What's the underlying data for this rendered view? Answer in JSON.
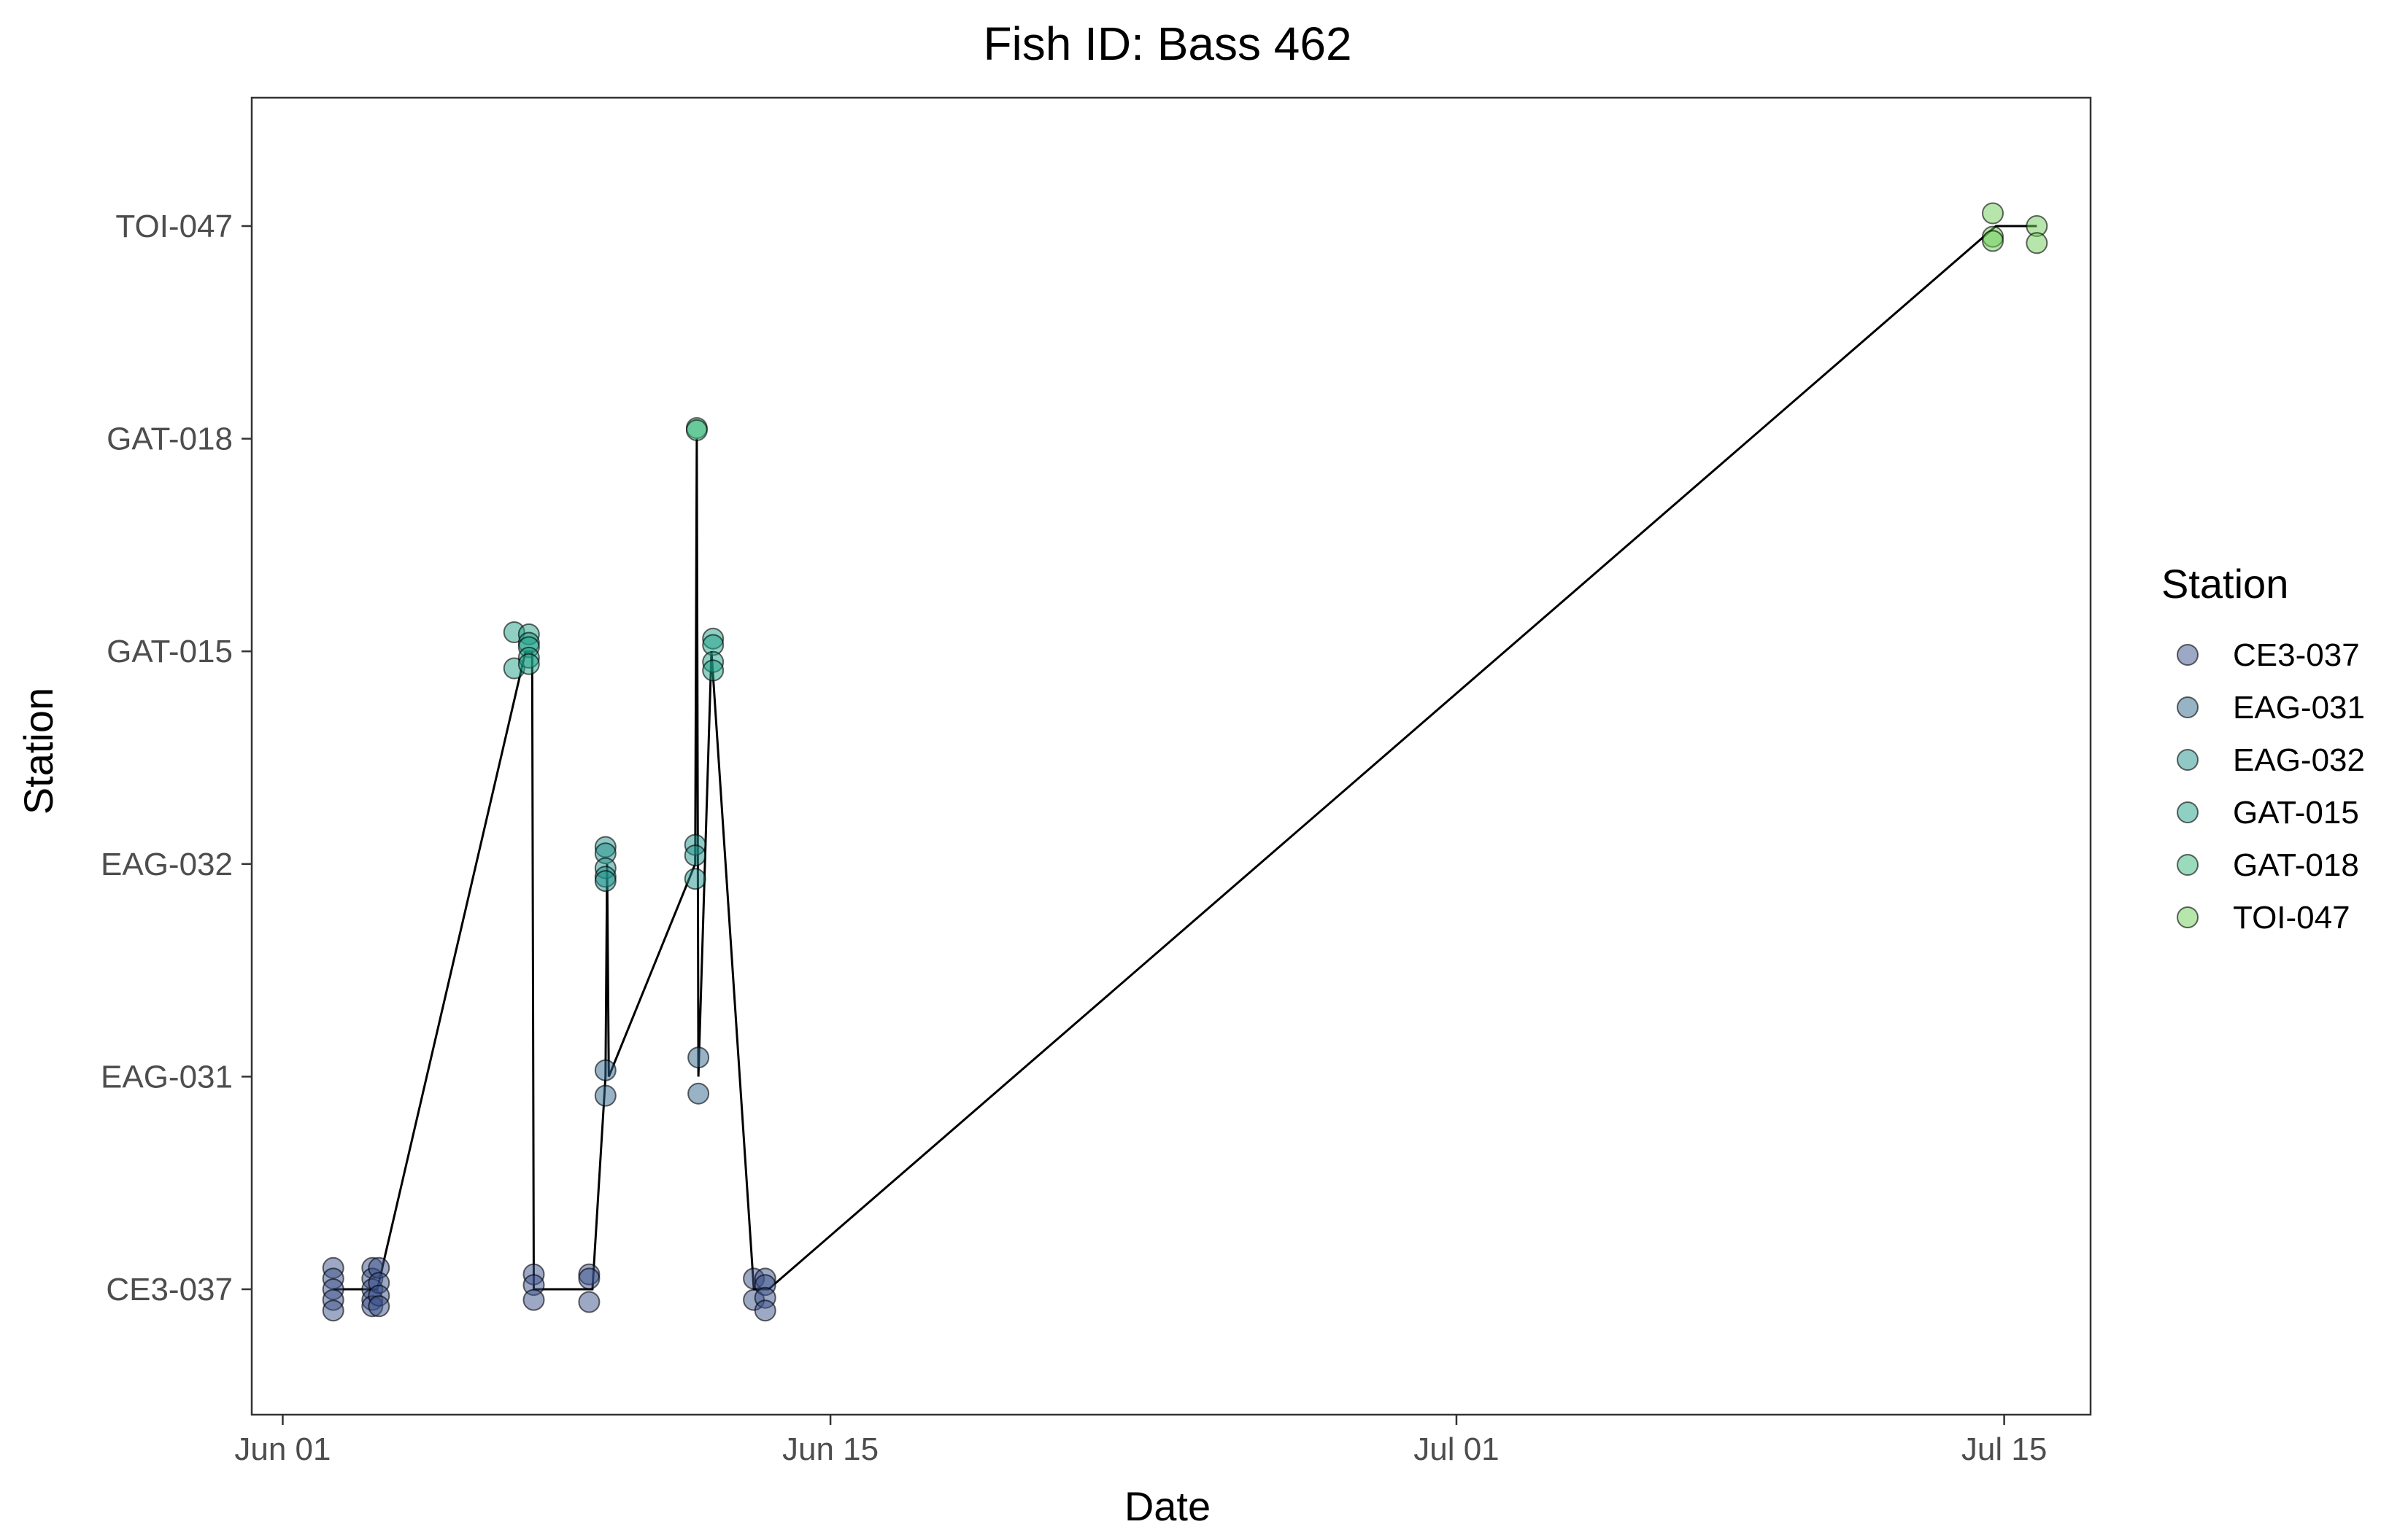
{
  "chart_data": {
    "type": "scatter",
    "title": "Fish ID: Bass 462",
    "xlabel": "Date",
    "ylabel": "Station",
    "x_ticks": [
      "Jun 01",
      "Jun 15",
      "Jul 01",
      "Jul 15"
    ],
    "x_tick_dates": [
      "2023-06-01",
      "2023-06-15",
      "2023-07-01",
      "2023-07-15"
    ],
    "x_range": [
      "2023-05-31T05:00",
      "2023-07-17T05:00"
    ],
    "categories": [
      "CE3-037",
      "EAG-031",
      "EAG-032",
      "GAT-015",
      "GAT-018",
      "TOI-047"
    ],
    "grid": false,
    "legend": {
      "title": "Station",
      "position": "right",
      "entries": [
        "CE3-037",
        "EAG-031",
        "EAG-032",
        "GAT-015",
        "GAT-018",
        "TOI-047"
      ]
    },
    "colors": {
      "CE3-037": "#3b528b",
      "EAG-031": "#31688e",
      "EAG-032": "#21918c",
      "GAT-015": "#1fa187",
      "GAT-018": "#35b779",
      "TOI-047": "#6ece58"
    },
    "path": [
      [
        "2023-06-02T07:00",
        "CE3-037"
      ],
      [
        "2023-06-03T08:00",
        "CE3-037"
      ],
      [
        "2023-06-03T10:00",
        "CE3-037"
      ],
      [
        "2023-06-07T05:00",
        "GAT-015"
      ],
      [
        "2023-06-07T09:00",
        "GAT-015"
      ],
      [
        "2023-06-07T10:00",
        "CE3-037"
      ],
      [
        "2023-06-08T22:00",
        "CE3-037"
      ],
      [
        "2023-06-09T06:00",
        "EAG-031"
      ],
      [
        "2023-06-09T07:00",
        "EAG-032"
      ],
      [
        "2023-06-09T08:00",
        "EAG-031"
      ],
      [
        "2023-06-11T13:00",
        "EAG-032"
      ],
      [
        "2023-06-11T14:00",
        "GAT-018"
      ],
      [
        "2023-06-11T15:00",
        "EAG-031"
      ],
      [
        "2023-06-11T23:00",
        "GAT-015"
      ],
      [
        "2023-06-13T01:00",
        "CE3-037"
      ],
      [
        "2023-06-13T10:00",
        "CE3-037"
      ],
      [
        "2023-07-14T19:00",
        "TOI-047"
      ],
      [
        "2023-07-15T20:00",
        "TOI-047"
      ]
    ],
    "points": [
      {
        "x": "2023-06-02T07:00",
        "station": "CE3-037",
        "jitter": [
          0.1,
          0.05,
          0.0,
          -0.05,
          -0.1
        ]
      },
      {
        "x": "2023-06-03T07:00",
        "station": "CE3-037",
        "jitter": [
          0.1,
          0.05,
          0.0,
          -0.05,
          -0.08
        ]
      },
      {
        "x": "2023-06-03T11:00",
        "station": "CE3-037",
        "jitter": [
          0.1,
          0.03,
          -0.03,
          -0.08
        ]
      },
      {
        "x": "2023-06-06T22:00",
        "station": "GAT-015",
        "jitter": [
          0.09,
          -0.08
        ]
      },
      {
        "x": "2023-06-07T07:00",
        "station": "GAT-015",
        "jitter": [
          0.08,
          0.04,
          0.02,
          -0.03,
          -0.06
        ]
      },
      {
        "x": "2023-06-07T10:00",
        "station": "CE3-037",
        "jitter": [
          0.07,
          0.02,
          -0.05
        ]
      },
      {
        "x": "2023-06-08T20:00",
        "station": "CE3-037",
        "jitter": [
          0.07,
          0.05,
          -0.06
        ]
      },
      {
        "x": "2023-06-09T06:00",
        "station": "EAG-032",
        "jitter": [
          0.08,
          0.05,
          -0.02,
          -0.06,
          -0.08
        ]
      },
      {
        "x": "2023-06-09T06:00",
        "station": "EAG-031",
        "jitter": [
          0.03,
          -0.09
        ]
      },
      {
        "x": "2023-06-11T13:00",
        "station": "EAG-032",
        "jitter": [
          0.09,
          0.04,
          -0.07
        ]
      },
      {
        "x": "2023-06-11T14:00",
        "station": "GAT-018",
        "jitter": [
          0.05,
          0.04
        ]
      },
      {
        "x": "2023-06-11T15:00",
        "station": "EAG-031",
        "jitter": [
          0.09,
          -0.08
        ]
      },
      {
        "x": "2023-06-12T00:00",
        "station": "GAT-015",
        "jitter": [
          0.06,
          0.03,
          -0.05,
          -0.09
        ]
      },
      {
        "x": "2023-06-13T01:00",
        "station": "CE3-037",
        "jitter": [
          0.05,
          -0.05
        ]
      },
      {
        "x": "2023-06-13T08:00",
        "station": "CE3-037",
        "jitter": [
          0.05,
          0.02,
          -0.04,
          -0.1
        ]
      },
      {
        "x": "2023-07-14T17:00",
        "station": "TOI-047",
        "jitter": [
          0.06,
          -0.05,
          -0.07
        ]
      },
      {
        "x": "2023-07-15T20:00",
        "station": "TOI-047",
        "jitter": [
          0.0,
          -0.08
        ]
      }
    ]
  }
}
